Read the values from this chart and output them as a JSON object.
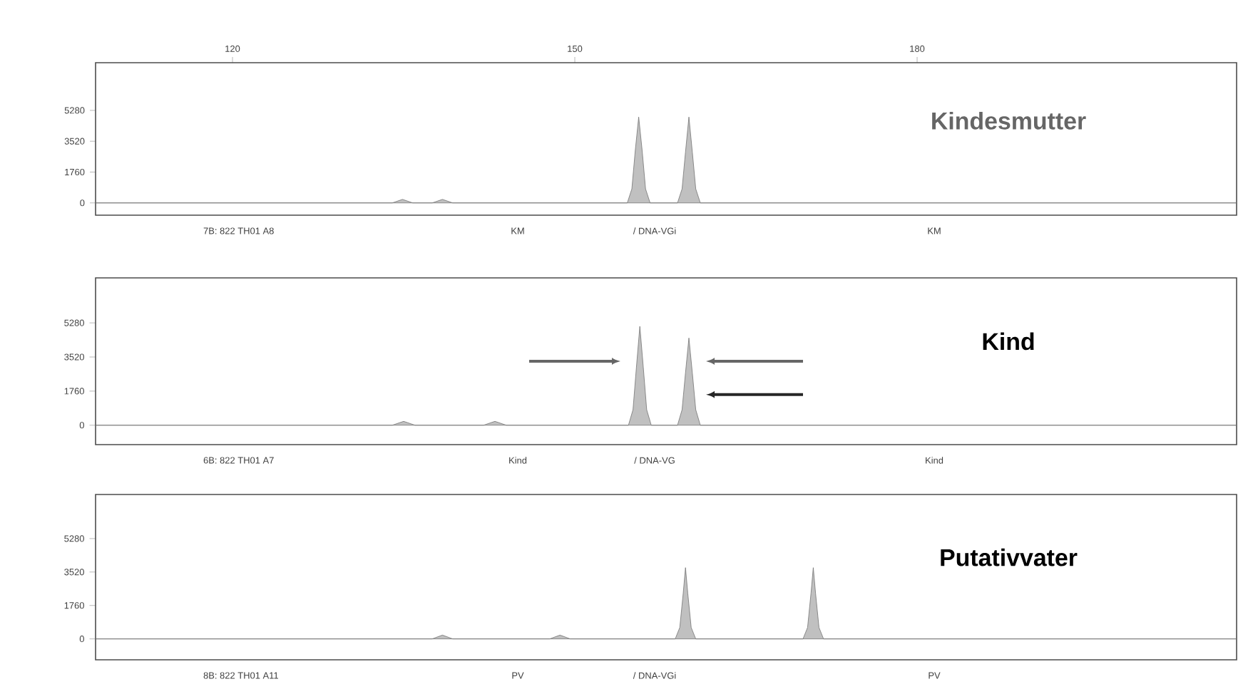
{
  "chart_data": [
    {
      "type": "area",
      "title": "Kindesmutter",
      "color": "#c0c0c0",
      "xlim": [
        108,
        208
      ],
      "ylim": [
        -700,
        8000
      ],
      "xticks": [
        120,
        150,
        180
      ],
      "yticks": [
        0,
        1760,
        3520,
        5280
      ],
      "x": [
        108,
        125,
        134,
        134.9,
        135.8,
        137.5,
        138.4,
        139.3,
        153,
        154.6,
        155.0,
        155.3,
        155.6,
        155.9,
        156.2,
        156.6,
        159.0,
        159.4,
        159.7,
        160.0,
        160.3,
        160.6,
        161.0,
        175,
        190,
        208
      ],
      "values": [
        0,
        0,
        0,
        200,
        0,
        0,
        200,
        0,
        0,
        0,
        800,
        3000,
        4900,
        3000,
        800,
        0,
        0,
        800,
        2900,
        4900,
        2900,
        800,
        0,
        0,
        0,
        0
      ],
      "annotations": [
        "7B: 822 TH01 A8",
        "KM",
        "/ DNA-VGi",
        "KM"
      ]
    },
    {
      "type": "area",
      "title": "Kind",
      "color": "#c0c0c0",
      "xlim": [
        108,
        208
      ],
      "ylim": [
        -1000,
        7600
      ],
      "yticks": [
        0,
        1760,
        3520,
        5280
      ],
      "tick_labels": "y",
      "x": [
        108,
        125,
        134,
        135,
        136,
        142,
        143,
        144,
        153,
        154.7,
        155.1,
        155.4,
        155.7,
        156.0,
        156.3,
        156.7,
        159.0,
        159.4,
        159.7,
        160.0,
        160.3,
        160.6,
        161.0,
        175,
        190,
        208
      ],
      "values": [
        0,
        0,
        0,
        200,
        0,
        0,
        200,
        0,
        0,
        0,
        800,
        3000,
        5100,
        3000,
        800,
        0,
        0,
        800,
        2700,
        4500,
        2700,
        800,
        0,
        0,
        0,
        0
      ],
      "annotations": [
        "6B: 822 TH01 A7",
        "Kind",
        "/ DNA-VG",
        "Kind"
      ]
    },
    {
      "type": "area",
      "title": "Putativvater",
      "color": "#c0c0c0",
      "xlim": [
        108,
        208
      ],
      "ylim": [
        -1100,
        7600
      ],
      "yticks": [
        0,
        1760,
        3520,
        5280
      ],
      "tick_labels": "y",
      "x": [
        108,
        125,
        137.5,
        138.4,
        139.3,
        147.8,
        148.7,
        149.6,
        158.8,
        159.2,
        159.5,
        159.7,
        159.9,
        160.2,
        160.6,
        170.0,
        170.4,
        170.7,
        170.9,
        171.1,
        171.4,
        171.8,
        185,
        208
      ],
      "values": [
        0,
        0,
        0,
        200,
        0,
        0,
        200,
        0,
        0,
        600,
        2400,
        3750,
        2400,
        600,
        0,
        0,
        600,
        2400,
        3750,
        2400,
        600,
        0,
        0,
        0
      ],
      "annotations": [
        "8B: 822 TH01 A11",
        "PV",
        "/ DNA-VGi",
        "PV"
      ]
    }
  ]
}
